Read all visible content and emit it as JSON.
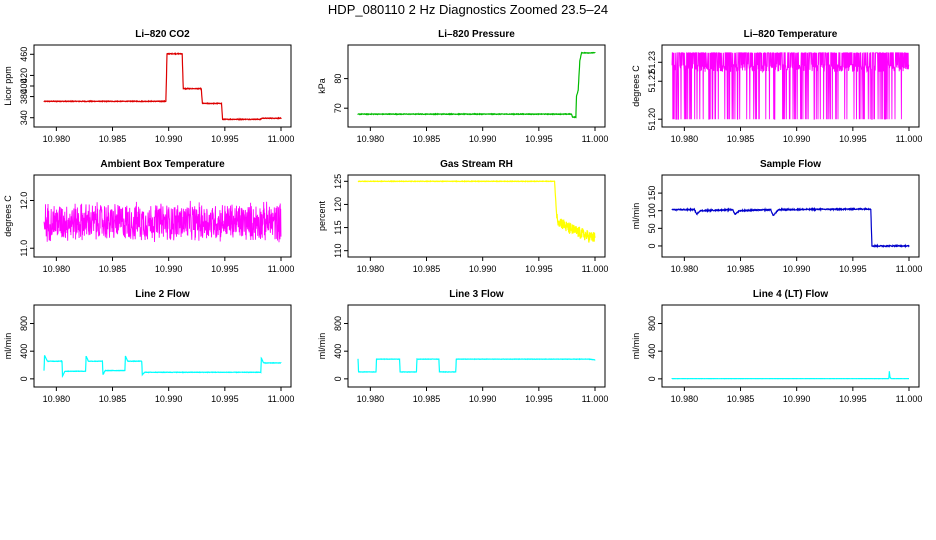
{
  "page_title": "HDP_080110  2 Hz Diagnostics Zoomed 23.5–24",
  "chart_data": [
    {
      "type": "line",
      "title": "Li–820 CO2",
      "ylabel": "Licor ppm",
      "color": "#dd0000",
      "xlim": [
        10.9789,
        11.0
      ],
      "ylim": [
        330,
        470
      ],
      "xticks": [
        "10.980",
        "10.985",
        "10.990",
        "10.995",
        "11.000"
      ],
      "yticks": [
        "340",
        "380",
        "400",
        "420",
        "460"
      ],
      "noise": 0.6,
      "series": [
        {
          "x": [
            10.9789,
            10.98975,
            10.98985,
            10.9912,
            10.9913,
            10.9929,
            10.993,
            10.9947,
            10.9948,
            10.9982,
            10.9983,
            11.0
          ],
          "y": [
            371,
            371,
            461,
            461,
            395,
            395,
            367,
            367,
            337,
            337,
            339,
            339
          ]
        }
      ]
    },
    {
      "type": "line",
      "title": "Li–820 Pressure",
      "ylabel": "kPa",
      "color": "#00bb00",
      "xlim": [
        10.9789,
        11.0
      ],
      "ylim": [
        65,
        90
      ],
      "xticks": [
        "10.980",
        "10.985",
        "10.990",
        "10.995",
        "11.000"
      ],
      "yticks": [
        "70",
        "80"
      ],
      "noise": 0.1,
      "series": [
        {
          "x": [
            10.9789,
            10.9979,
            10.998,
            10.9983,
            10.99835,
            10.9985,
            10.99865,
            10.9988,
            11.0
          ],
          "y": [
            68,
            68,
            67,
            67,
            74,
            76,
            86,
            88.7,
            88.7
          ]
        }
      ]
    },
    {
      "type": "line",
      "title": "Li–820 Temperature",
      "ylabel": "degrees C",
      "color": "#ff00ff",
      "xlim": [
        10.9789,
        11.0
      ],
      "ylim": [
        51.198,
        51.237
      ],
      "xticks": [
        "10.980",
        "10.985",
        "10.990",
        "10.995",
        "11.000"
      ],
      "yticks": [
        "51.20",
        "51.22",
        "51.23"
      ],
      "pattern": "binary",
      "series": [
        {
          "low": 51.2,
          "high": 51.235,
          "base": 51.227
        }
      ]
    },
    {
      "type": "line",
      "title": "Ambient Box Temperature",
      "ylabel": "degrees C",
      "color": "#ff00ff",
      "xlim": [
        10.9789,
        11.0
      ],
      "ylim": [
        10.9,
        12.45
      ],
      "xticks": [
        "10.980",
        "10.985",
        "10.990",
        "10.995",
        "11.000"
      ],
      "yticks": [
        "11.0",
        "12.0"
      ],
      "pattern": "noise",
      "series": [
        {
          "mean": 11.55,
          "amplitude": 0.38
        }
      ]
    },
    {
      "type": "line",
      "title": "Gas Stream RH",
      "ylabel": "percent",
      "color": "#ffff00",
      "xlim": [
        10.9789,
        11.0
      ],
      "ylim": [
        109.5,
        125.5
      ],
      "xticks": [
        "10.980",
        "10.985",
        "10.990",
        "10.995",
        "11.000"
      ],
      "yticks": [
        "110",
        "115",
        "120",
        "125"
      ],
      "noise": 0.05,
      "series": [
        {
          "x": [
            10.9789,
            10.9964,
            10.9966,
            10.9968,
            10.9975,
            10.9985,
            10.9995,
            11.0
          ],
          "y": [
            125,
            125,
            117,
            116.5,
            115,
            114,
            113,
            112.8
          ]
        }
      ],
      "noise_segments": [
        {
          "from": 10.9966,
          "to": 11.0,
          "amplitude": 1.3
        }
      ]
    },
    {
      "type": "line",
      "title": "Sample Flow",
      "ylabel": "ml/min",
      "color": "#0000cc",
      "xlim": [
        10.9789,
        11.0
      ],
      "ylim": [
        -20,
        190
      ],
      "xticks": [
        "10.980",
        "10.985",
        "10.990",
        "10.995",
        "11.000"
      ],
      "yticks": [
        "0",
        "50",
        "100",
        "150"
      ],
      "noise": 1.5,
      "series": [
        {
          "x": [
            10.9789,
            10.9809,
            10.9811,
            10.9814,
            10.9843,
            10.9845,
            10.9849,
            10.9877,
            10.9879,
            10.9884,
            10.9966,
            10.9967,
            11.0
          ],
          "y": [
            103,
            103,
            90,
            100,
            103,
            90,
            100,
            103,
            86,
            103,
            105,
            0,
            0
          ]
        }
      ]
    },
    {
      "type": "line",
      "title": "Line 2 Flow",
      "ylabel": "ml/min",
      "color": "#00ffff",
      "xlim": [
        10.9789,
        11.0
      ],
      "ylim": [
        -60,
        1010
      ],
      "xticks": [
        "10.980",
        "10.985",
        "10.990",
        "10.995",
        "11.000"
      ],
      "yticks": [
        "0",
        "400",
        "800"
      ],
      "noise": 3,
      "series": [
        {
          "x": [
            10.9789,
            10.97895,
            10.9792,
            10.9805,
            10.98055,
            10.98075,
            10.9826,
            10.98265,
            10.98285,
            10.9841,
            10.98415,
            10.98435,
            10.9861,
            10.98615,
            10.98635,
            10.9876,
            10.98765,
            10.98785,
            10.9982,
            10.99825,
            10.99845,
            11.0
          ],
          "y": [
            120,
            340,
            255,
            255,
            40,
            110,
            110,
            330,
            255,
            255,
            60,
            120,
            120,
            330,
            255,
            255,
            60,
            95,
            95,
            300,
            230,
            230
          ]
        }
      ]
    },
    {
      "type": "line",
      "title": "Line 3 Flow",
      "ylabel": "ml/min",
      "color": "#00ffff",
      "xlim": [
        10.9789,
        11.0
      ],
      "ylim": [
        -60,
        1010
      ],
      "xticks": [
        "10.980",
        "10.985",
        "10.990",
        "10.995",
        "11.000"
      ],
      "yticks": [
        "0",
        "400",
        "800"
      ],
      "noise": 2,
      "series": [
        {
          "x": [
            10.9789,
            10.97895,
            10.9791,
            10.9805,
            10.98055,
            10.9826,
            10.98265,
            10.9841,
            10.98415,
            10.9861,
            10.98615,
            10.9876,
            10.98765,
            10.9995,
            11.0
          ],
          "y": [
            290,
            100,
            100,
            100,
            285,
            285,
            100,
            100,
            285,
            285,
            100,
            100,
            285,
            285,
            275
          ]
        }
      ]
    },
    {
      "type": "line",
      "title": "Line 4 (LT) Flow",
      "ylabel": "ml/min",
      "color": "#00ffff",
      "xlim": [
        10.9789,
        11.0
      ],
      "ylim": [
        -60,
        1010
      ],
      "xticks": [
        "10.980",
        "10.985",
        "10.990",
        "10.995",
        "11.000"
      ],
      "yticks": [
        "0",
        "400",
        "800"
      ],
      "noise": 1,
      "series": [
        {
          "x": [
            10.9789,
            10.9982,
            10.99825,
            10.9983,
            10.9984,
            11.0
          ],
          "y": [
            3,
            3,
            110,
            30,
            3,
            3
          ]
        }
      ]
    }
  ]
}
